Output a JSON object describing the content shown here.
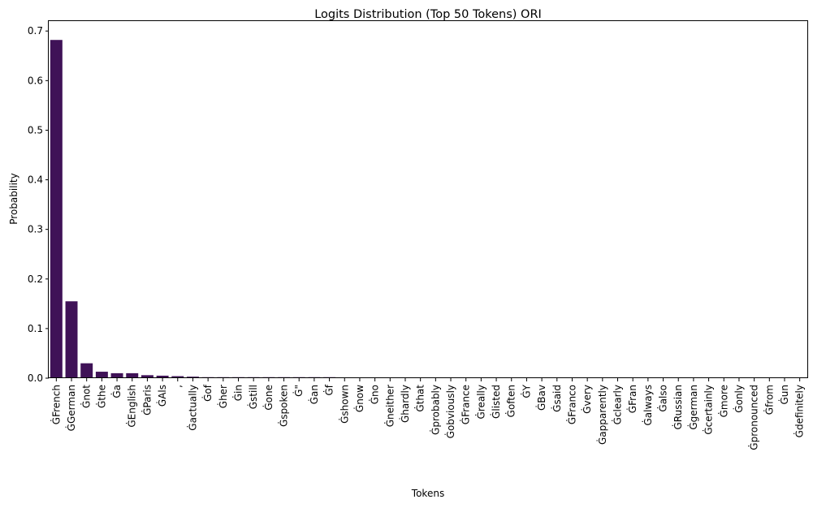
{
  "chart_data": {
    "type": "bar",
    "title": "Logits Distribution (Top 50 Tokens) ORI",
    "xlabel": "Tokens",
    "ylabel": "Probability",
    "ylim": [
      0,
      0.72
    ],
    "yticks": [
      "0.0",
      "0.1",
      "0.2",
      "0.3",
      "0.4",
      "0.5",
      "0.6",
      "0.7"
    ],
    "grid": false,
    "bar_color": "#3f1257",
    "categories": [
      "ĠFrench",
      "ĠGerman",
      "Ġnot",
      "Ġthe",
      "Ġa",
      "ĠEnglish",
      "ĠParis",
      "ĠAls",
      ",",
      "Ġactually",
      "Ġof",
      "Ġher",
      "Ġin",
      "Ġstill",
      "Ġone",
      "Ġspoken",
      "Ġ\"",
      "Ġan",
      "Ġf",
      "Ġshown",
      "Ġnow",
      "Ġno",
      "Ġneither",
      "Ġhardly",
      "Ġthat",
      "Ġprobably",
      "Ġobviously",
      "ĠFrance",
      "Ġreally",
      "Ġlisted",
      "Ġoften",
      "ĠY",
      "ĠBav",
      "Ġsaid",
      "ĠFranco",
      "Ġvery",
      "Ġapparently",
      "Ġclearly",
      "ĠFran",
      "Ġalways",
      "Ġalso",
      "ĠRussian",
      "Ġgerman",
      "Ġcertainly",
      "Ġmore",
      "Ġonly",
      "Ġpronounced",
      "Ġfrom",
      "Ġun",
      "Ġdefinitely"
    ],
    "values": [
      0.682,
      0.155,
      0.03,
      0.013,
      0.01,
      0.01,
      0.006,
      0.005,
      0.004,
      0.003,
      0.002,
      0.002,
      0.002,
      0.002,
      0.002,
      0.002,
      0.002,
      0.002,
      0.002,
      0.001,
      0.001,
      0.001,
      0.001,
      0.001,
      0.001,
      0.001,
      0.001,
      0.001,
      0.001,
      0.001,
      0.001,
      0.001,
      0.001,
      0.001,
      0.001,
      0.0008,
      0.0008,
      0.0008,
      0.0008,
      0.0008,
      0.0008,
      0.0008,
      0.0008,
      0.0008,
      0.0008,
      0.0008,
      0.0008,
      0.0007,
      0.0007,
      0.0007
    ]
  }
}
